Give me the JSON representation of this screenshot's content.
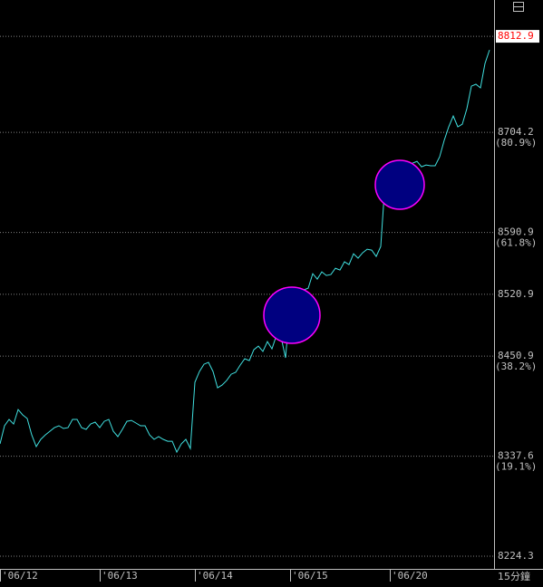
{
  "chart_data": {
    "type": "line",
    "interval": "15分鐘",
    "color": "#40e0e0",
    "grid": true,
    "highlight_color": "#ff0000",
    "x": [
      0,
      1,
      2,
      3,
      4,
      5,
      6,
      7,
      8,
      9,
      10,
      11,
      12,
      13,
      14,
      15,
      16,
      17,
      18,
      19,
      20,
      21,
      22,
      23,
      24,
      25,
      26,
      27,
      28,
      29,
      30,
      31,
      32,
      33,
      34,
      35,
      36,
      37,
      38,
      39,
      40,
      41,
      42,
      43,
      44,
      45,
      46,
      47,
      48,
      49,
      50,
      51,
      52,
      53,
      54,
      55,
      56,
      57,
      58,
      59,
      60,
      61,
      62,
      63,
      64,
      65,
      66,
      67,
      68,
      69,
      70,
      71,
      72,
      73,
      74,
      75,
      76,
      77,
      78,
      79,
      80,
      81,
      82,
      83,
      84,
      85,
      86,
      87,
      88,
      89,
      90,
      91,
      92,
      93,
      94,
      95,
      96,
      97,
      98,
      99,
      100,
      101,
      102,
      103,
      104,
      105,
      106,
      107,
      108
    ],
    "values": [
      8351.5,
      8372.0,
      8379.2,
      8374.0,
      8390.4,
      8384.3,
      8380.2,
      8361.7,
      8348.4,
      8356.6,
      8361.7,
      8365.8,
      8369.9,
      8372.0,
      8368.9,
      8369.9,
      8379.2,
      8379.2,
      8369.9,
      8367.9,
      8374.0,
      8376.1,
      8369.9,
      8377.1,
      8379.2,
      8365.8,
      8359.7,
      8367.9,
      8377.1,
      8378.1,
      8375.1,
      8372.0,
      8372.0,
      8361.7,
      8356.6,
      8359.7,
      8356.6,
      8354.5,
      8354.5,
      8342.2,
      8351.5,
      8356.6,
      8346.3,
      8421.2,
      8433.5,
      8441.7,
      8443.8,
      8433.5,
      8415.0,
      8418.1,
      8423.2,
      8430.4,
      8432.5,
      8440.7,
      8447.9,
      8445.8,
      8458.1,
      8462.2,
      8456.1,
      8467.3,
      8459.1,
      8474.5,
      8472.5,
      8448.9,
      8509.4,
      8513.5,
      8517.6,
      8525.8,
      8527.8,
      8544.2,
      8538.1,
      8546.3,
      8542.2,
      8543.2,
      8550.4,
      8548.3,
      8557.6,
      8554.5,
      8566.8,
      8561.7,
      8567.8,
      8571.9,
      8570.9,
      8563.7,
      8575.0,
      8650.9,
      8642.7,
      8636.5,
      8648.8,
      8655.0,
      8659.1,
      8669.3,
      8671.4,
      8665.2,
      8667.3,
      8666.3,
      8666.3,
      8676.5,
      8695.0,
      8710.4,
      8722.7,
      8710.4,
      8713.4,
      8730.9,
      8756.5,
      8758.6,
      8754.5,
      8782.1,
      8797.5
    ],
    "xlim": [
      0,
      109
    ],
    "xticks": [
      {
        "value": 0,
        "label": "'06/12"
      },
      {
        "value": 22,
        "label": "'06/13"
      },
      {
        "value": 43,
        "label": "'06/14"
      },
      {
        "value": 64,
        "label": "'06/15"
      },
      {
        "value": 86,
        "label": "'06/20"
      }
    ],
    "ylim": [
      8210,
      8854
    ],
    "yticks": [
      8812.9,
      8704.2,
      8590.9,
      8520.9,
      8450.9,
      8337.6,
      8224.3
    ],
    "retracement_labels": [
      {
        "value": 8704.2,
        "label": "(80.9%)"
      },
      {
        "value": 8590.9,
        "label": "(61.8%)"
      },
      {
        "value": 8450.9,
        "label": "(38.2%)"
      },
      {
        "value": 8337.6,
        "label": "(19.1%)"
      }
    ]
  }
}
